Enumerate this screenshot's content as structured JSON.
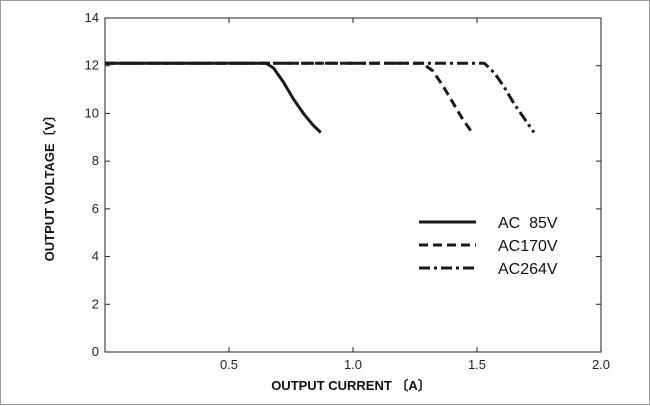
{
  "chart_data": {
    "type": "line",
    "title": "",
    "xlabel": "OUTPUT CURRENT",
    "xlabel_unit": "A",
    "ylabel": "OUTPUT VOLTAGE",
    "ylabel_unit": "V",
    "xlim": [
      0,
      2.0
    ],
    "ylim": [
      0,
      14
    ],
    "x_ticks": [
      0.5,
      1.0,
      1.5,
      2.0
    ],
    "x_tick_labels": [
      "0.5",
      "1.0",
      "1.5",
      "2.0"
    ],
    "y_ticks": [
      0,
      2,
      4,
      6,
      8,
      10,
      12,
      14
    ],
    "y_tick_labels": [
      "0",
      "2",
      "4",
      "6",
      "8",
      "10",
      "12",
      "14"
    ],
    "grid": false,
    "legend_position": "right-center",
    "series": [
      {
        "name": "AC  85V",
        "line_style": "solid",
        "x": [
          0,
          0.65,
          0.68,
          0.72,
          0.76,
          0.8,
          0.84,
          0.87
        ],
        "y": [
          12.1,
          12.1,
          11.9,
          11.3,
          10.6,
          10.0,
          9.5,
          9.2
        ]
      },
      {
        "name": "AC170V",
        "line_style": "dashed",
        "x": [
          0,
          1.28,
          1.32,
          1.36,
          1.4,
          1.44,
          1.48
        ],
        "y": [
          12.1,
          12.1,
          11.8,
          11.2,
          10.5,
          9.8,
          9.2
        ]
      },
      {
        "name": "AC264V",
        "line_style": "dashdot",
        "x": [
          0,
          1.53,
          1.57,
          1.61,
          1.65,
          1.69,
          1.73
        ],
        "y": [
          12.1,
          12.1,
          11.7,
          11.1,
          10.4,
          9.8,
          9.2
        ]
      }
    ],
    "colors": {
      "line": "#1a1a1a",
      "axis": "#222222"
    }
  }
}
